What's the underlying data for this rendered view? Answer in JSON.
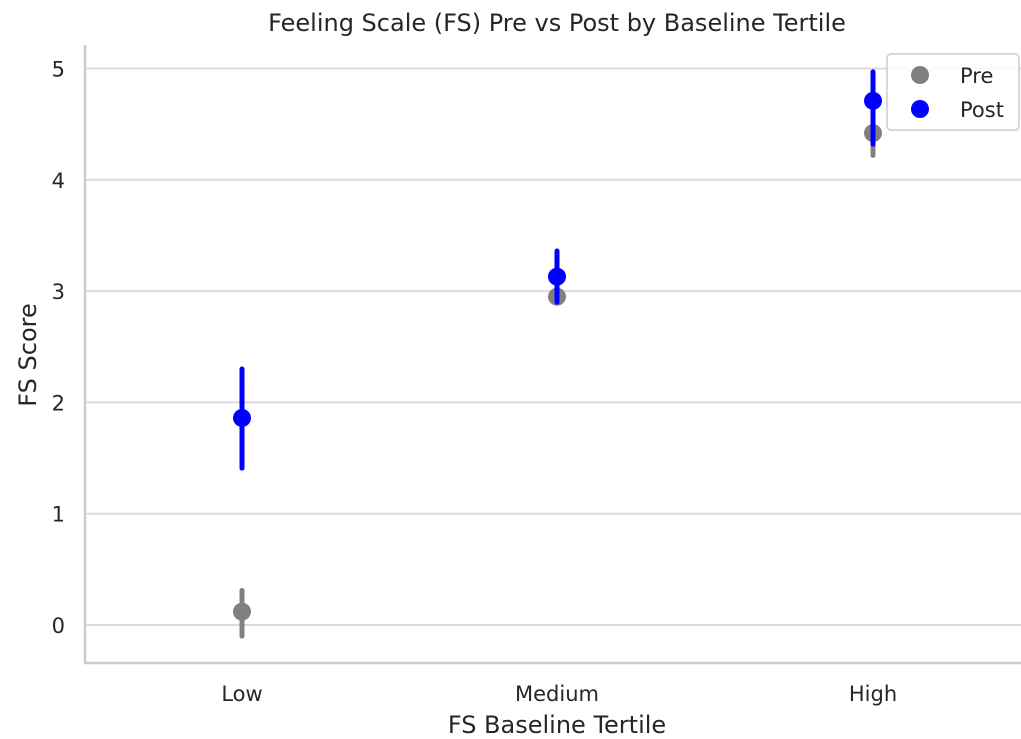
{
  "chart_data": {
    "type": "scatter",
    "title": "Feeling Scale (FS) Pre vs Post by Baseline Tertile",
    "xlabel": "FS Baseline Tertile",
    "ylabel": "FS Score",
    "categories": [
      "Low",
      "Medium",
      "High"
    ],
    "ylim": [
      -0.35,
      5.2
    ],
    "yticks": [
      0,
      1,
      2,
      3,
      4,
      5
    ],
    "grid": true,
    "legend_position": "top-right",
    "series": [
      {
        "name": "Pre",
        "color": "#808080",
        "values": [
          0.12,
          2.95,
          4.42
        ],
        "ci_low": [
          -0.1,
          2.93,
          4.22
        ],
        "ci_high": [
          0.31,
          2.97,
          4.62
        ]
      },
      {
        "name": "Post",
        "color": "#0000ff",
        "values": [
          1.86,
          3.13,
          4.71
        ],
        "ci_low": [
          1.41,
          2.9,
          4.32
        ],
        "ci_high": [
          2.3,
          3.36,
          4.97
        ]
      }
    ]
  }
}
